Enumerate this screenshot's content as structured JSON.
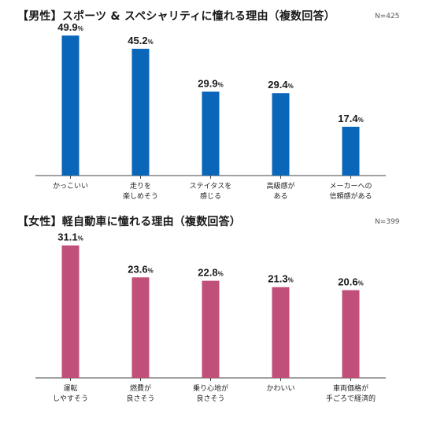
{
  "chart_data": [
    {
      "type": "bar",
      "title": "【男性】スポーツ & スペシャリティに憧れる理由（複数回答）",
      "sample_note": "N=425",
      "unit": "%",
      "color": "#0a66b8",
      "categories": [
        "かっこいい",
        "走りを\n楽しめそう",
        "ステイタスを\n感じる",
        "高級感が\nある",
        "メーカーへの\n信頼感がある"
      ],
      "values": [
        49.9,
        45.2,
        29.9,
        29.4,
        17.4
      ],
      "ylim": [
        0,
        55
      ],
      "grid": false
    },
    {
      "type": "bar",
      "title": "【女性】軽自動車に憧れる理由（複数回答）",
      "sample_note": "N=399",
      "unit": "%",
      "color": "#c0507a",
      "categories": [
        "運転\nしやすそう",
        "燃費が\n良さそう",
        "乗り心地が\n良さそう",
        "かわいい",
        "車両価格が\n手ごろで経済的"
      ],
      "values": [
        31.1,
        23.6,
        22.8,
        21.3,
        20.6
      ],
      "ylim": [
        0,
        34
      ],
      "grid": false
    }
  ]
}
